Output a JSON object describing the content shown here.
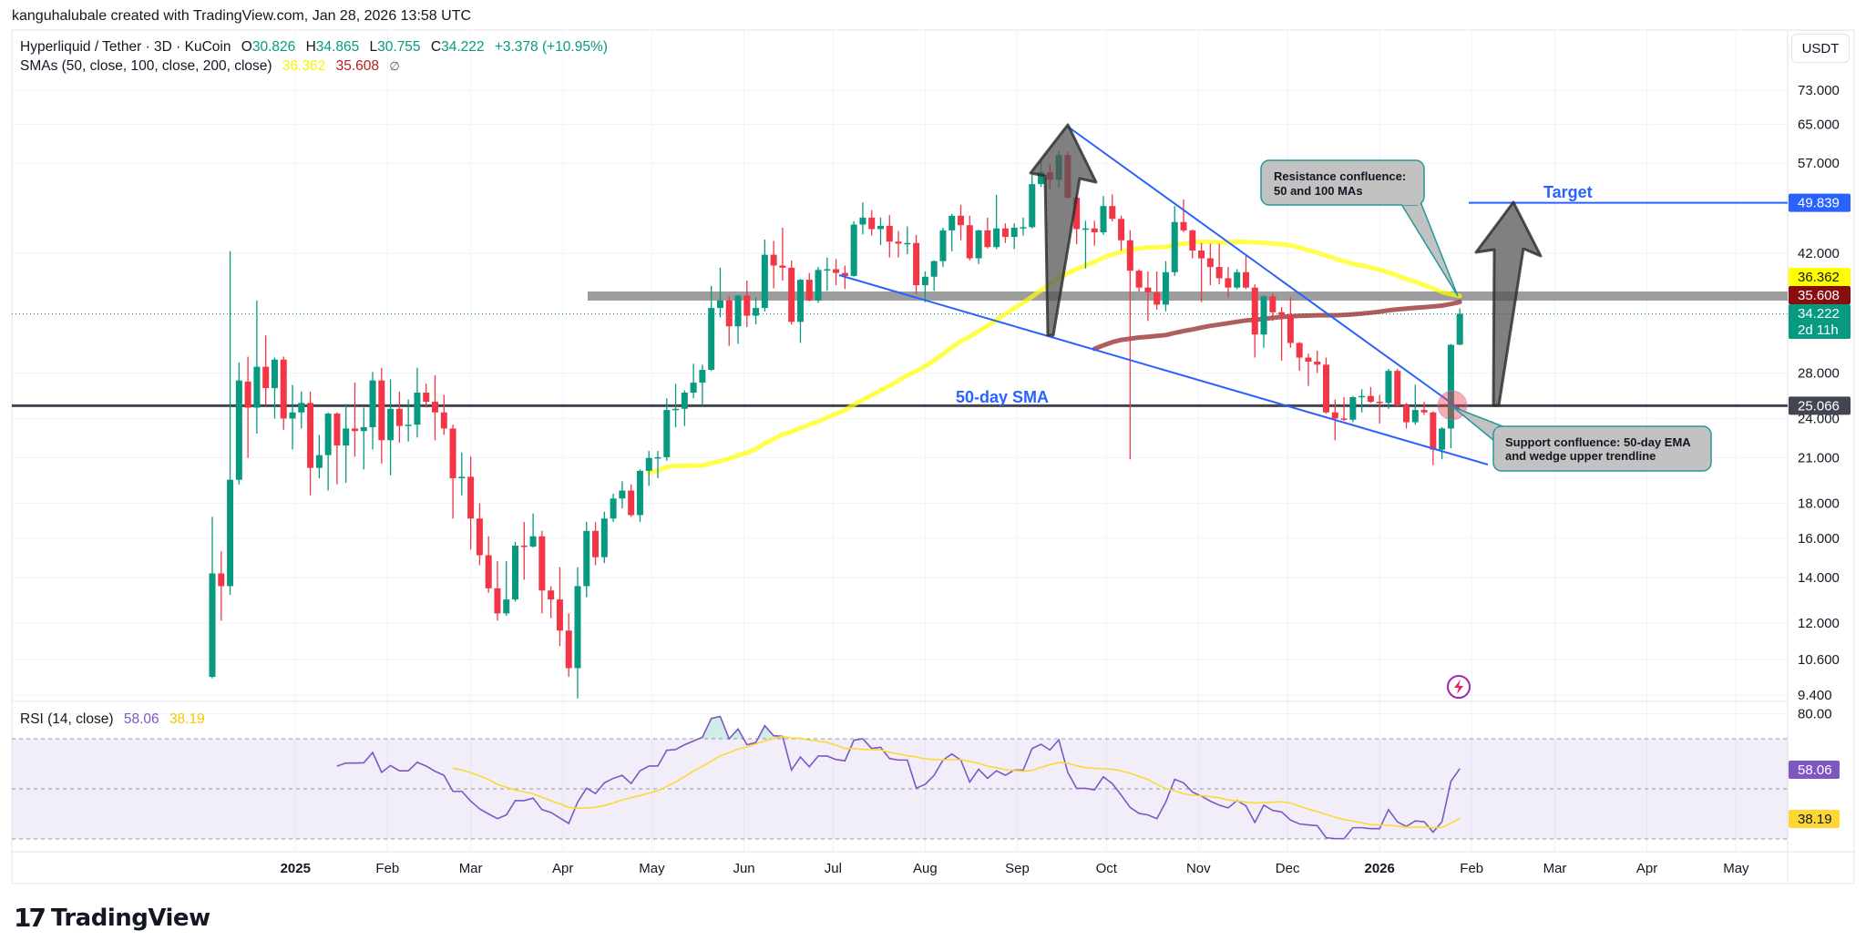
{
  "header": {
    "attribution": "kanguhalubale created with TradingView.com, Jan 28, 2026 13:58 UTC"
  },
  "legend": {
    "symbol": "Hyperliquid / Tether · 3D · KuCoin",
    "o_label": "O",
    "o": "30.826",
    "h_label": "H",
    "h": "34.865",
    "l_label": "L",
    "l": "30.755",
    "c_label": "C",
    "c": "34.222",
    "change": "+3.378 (+10.95%)",
    "sma_label": "SMAs (50, close, 100, close, 200, close)",
    "sma50": "36.362",
    "sma100": "35.608",
    "sma200": "∅"
  },
  "rsi_legend": {
    "label": "RSI (14, close)",
    "value": "58.06",
    "ma": "38.19"
  },
  "price_scale_button": "USDT",
  "branding": {
    "logo_text": "TradingView"
  },
  "colors": {
    "up": "#089981",
    "down": "#f23645",
    "sma50": "#ffff00",
    "sma100": "#8b1a1a",
    "rsi": "#7e57c2",
    "rsi_ma": "#fdd835",
    "annotation_blue": "#2962ff",
    "support_line": "#434651",
    "resistance_band": "#8c8c8c",
    "callout_fill": "#c2c2c2",
    "callout_border": "#22999a"
  },
  "chart_data": {
    "type": "candlestick",
    "symbol": "Hyperliquid / Tether",
    "interval": "3D",
    "price_scale": "log",
    "currency": "USDT",
    "grid": true,
    "price_ticks": [
      "73.000",
      "65.000",
      "57.000",
      "42.000",
      "28.000",
      "24.000",
      "21.000",
      "18.000",
      "16.000",
      "14.000",
      "12.000",
      "10.600",
      "9.400"
    ],
    "price_labels": [
      {
        "name": "target",
        "text": "49.839",
        "color": "#2962ff",
        "text_color": "#ffffff"
      },
      {
        "name": "sma50",
        "text": "36.362",
        "color": "#ffff00",
        "text_color": "#131722"
      },
      {
        "name": "sma100",
        "text": "35.608",
        "color": "#880e0e",
        "text_color": "#ffffff"
      },
      {
        "name": "last",
        "text": "34.222",
        "sub": "2d 11h",
        "color": "#089981",
        "text_color": "#ffffff"
      },
      {
        "name": "support",
        "text": "25.066",
        "color": "#434651",
        "text_color": "#ffffff"
      }
    ],
    "time_axis": {
      "labels": [
        {
          "text": "2025",
          "date": "2025-01-01",
          "bold": true
        },
        {
          "text": "Feb",
          "date": "2025-02-01"
        },
        {
          "text": "Mar",
          "date": "2025-03-01"
        },
        {
          "text": "Apr",
          "date": "2025-04-01"
        },
        {
          "text": "May",
          "date": "2025-05-01"
        },
        {
          "text": "Jun",
          "date": "2025-06-01"
        },
        {
          "text": "Jul",
          "date": "2025-07-01"
        },
        {
          "text": "Aug",
          "date": "2025-08-01"
        },
        {
          "text": "Sep",
          "date": "2025-09-01"
        },
        {
          "text": "Oct",
          "date": "2025-10-01"
        },
        {
          "text": "Nov",
          "date": "2025-11-01"
        },
        {
          "text": "Dec",
          "date": "2025-12-01"
        },
        {
          "text": "2026",
          "date": "2026-01-01",
          "bold": true
        },
        {
          "text": "Feb",
          "date": "2026-02-01"
        },
        {
          "text": "Mar",
          "date": "2026-03-01"
        },
        {
          "text": "Apr",
          "date": "2026-04-01"
        },
        {
          "text": "May",
          "date": "2026-05-01"
        }
      ]
    },
    "candle_columns": [
      "date",
      "open",
      "high",
      "low",
      "close"
    ],
    "candles": [
      [
        "2024-12-04",
        10.0,
        17.2,
        9.95,
        14.2
      ],
      [
        "2024-12-07",
        14.2,
        15.3,
        12.1,
        13.6
      ],
      [
        "2024-12-10",
        13.6,
        42.3,
        13.2,
        19.5
      ],
      [
        "2024-12-13",
        19.5,
        29.0,
        19.2,
        27.3
      ],
      [
        "2024-12-16",
        27.2,
        29.6,
        21.0,
        24.9
      ],
      [
        "2024-12-19",
        24.9,
        35.8,
        22.8,
        28.6
      ],
      [
        "2024-12-22",
        28.6,
        31.8,
        25.1,
        26.6
      ],
      [
        "2024-12-25",
        26.6,
        29.5,
        24.0,
        29.3
      ],
      [
        "2024-12-28",
        29.3,
        29.6,
        23.1,
        24.0
      ],
      [
        "2024-12-31",
        24.0,
        26.9,
        21.6,
        24.5
      ],
      [
        "2025-01-03",
        24.5,
        26.3,
        23.2,
        25.3
      ],
      [
        "2025-01-06",
        25.3,
        26.3,
        18.5,
        20.3
      ],
      [
        "2025-01-09",
        20.3,
        22.7,
        19.6,
        21.2
      ],
      [
        "2025-01-12",
        21.2,
        24.5,
        18.8,
        24.4
      ],
      [
        "2025-01-15",
        24.4,
        24.5,
        19.2,
        21.9
      ],
      [
        "2025-01-18",
        21.9,
        25.2,
        19.3,
        23.2
      ],
      [
        "2025-01-21",
        23.2,
        27.1,
        21.1,
        23.0
      ],
      [
        "2025-01-24",
        23.0,
        24.9,
        20.2,
        23.3
      ],
      [
        "2025-01-27",
        23.3,
        28.1,
        21.6,
        27.3
      ],
      [
        "2025-01-30",
        27.3,
        28.5,
        20.6,
        22.3
      ],
      [
        "2025-02-02",
        22.3,
        27.4,
        19.8,
        24.8
      ],
      [
        "2025-02-05",
        24.8,
        26.3,
        22.1,
        23.4
      ],
      [
        "2025-02-08",
        23.4,
        25.6,
        22.2,
        23.5
      ],
      [
        "2025-02-11",
        23.5,
        28.5,
        22.5,
        26.2
      ],
      [
        "2025-02-14",
        26.2,
        27.0,
        24.9,
        25.4
      ],
      [
        "2025-02-17",
        25.4,
        27.8,
        22.3,
        24.5
      ],
      [
        "2025-02-20",
        24.5,
        26.0,
        22.7,
        23.2
      ],
      [
        "2025-02-23",
        23.2,
        23.5,
        17.1,
        19.6
      ],
      [
        "2025-02-26",
        19.6,
        21.4,
        18.5,
        19.7
      ],
      [
        "2025-03-01",
        19.7,
        21.1,
        15.4,
        17.1
      ],
      [
        "2025-03-04",
        17.1,
        18.0,
        14.6,
        15.1
      ],
      [
        "2025-03-07",
        15.1,
        16.1,
        13.3,
        13.5
      ],
      [
        "2025-03-10",
        13.5,
        14.8,
        12.1,
        12.4
      ],
      [
        "2025-03-13",
        12.4,
        14.8,
        12.3,
        13.0
      ],
      [
        "2025-03-16",
        13.0,
        15.8,
        12.9,
        15.6
      ],
      [
        "2025-03-19",
        15.6,
        16.9,
        13.9,
        15.55
      ],
      [
        "2025-03-22",
        15.55,
        17.4,
        15.5,
        16.1
      ],
      [
        "2025-03-25",
        16.1,
        16.4,
        12.4,
        13.4
      ],
      [
        "2025-03-28",
        13.4,
        13.6,
        12.2,
        13.0
      ],
      [
        "2025-03-31",
        13.0,
        14.5,
        11.1,
        11.7
      ],
      [
        "2025-04-03",
        11.7,
        12.4,
        10.0,
        10.3
      ],
      [
        "2025-04-06",
        10.3,
        14.5,
        9.3,
        13.6
      ],
      [
        "2025-04-09",
        13.6,
        16.9,
        13.1,
        16.4
      ],
      [
        "2025-04-12",
        16.4,
        16.9,
        14.6,
        15.0
      ],
      [
        "2025-04-15",
        15.0,
        17.5,
        14.7,
        17.1
      ],
      [
        "2025-04-18",
        17.1,
        18.6,
        16.9,
        18.3
      ],
      [
        "2025-04-21",
        18.3,
        19.4,
        17.7,
        18.8
      ],
      [
        "2025-04-24",
        18.8,
        19.2,
        17.2,
        17.3
      ],
      [
        "2025-04-27",
        17.3,
        20.2,
        16.9,
        20.1
      ],
      [
        "2025-04-30",
        20.1,
        21.5,
        19.1,
        21.0
      ],
      [
        "2025-05-03",
        21.0,
        21.5,
        19.6,
        21.05
      ],
      [
        "2025-05-06",
        21.05,
        25.7,
        20.8,
        24.7
      ],
      [
        "2025-05-09",
        24.7,
        27.0,
        23.3,
        24.8
      ],
      [
        "2025-05-12",
        24.8,
        26.4,
        23.4,
        26.2
      ],
      [
        "2025-05-15",
        26.2,
        28.9,
        25.7,
        27.1
      ],
      [
        "2025-05-18",
        27.1,
        28.8,
        25.1,
        28.3
      ],
      [
        "2025-05-21",
        28.3,
        37.6,
        28.2,
        34.9
      ],
      [
        "2025-05-24",
        34.9,
        40.0,
        33.8,
        35.8
      ],
      [
        "2025-05-27",
        35.8,
        36.3,
        30.7,
        32.8
      ],
      [
        "2025-05-30",
        32.8,
        36.5,
        30.9,
        36.4
      ],
      [
        "2025-06-02",
        36.4,
        38.3,
        32.7,
        34.0
      ],
      [
        "2025-06-05",
        34.0,
        36.2,
        33.0,
        34.9
      ],
      [
        "2025-06-08",
        34.9,
        44.0,
        34.5,
        41.8
      ],
      [
        "2025-06-11",
        41.8,
        43.8,
        37.3,
        40.3
      ],
      [
        "2025-06-14",
        40.3,
        45.8,
        38.3,
        40.0
      ],
      [
        "2025-06-17",
        40.0,
        41.0,
        33.0,
        33.3
      ],
      [
        "2025-06-20",
        33.3,
        38.5,
        31.0,
        38.4
      ],
      [
        "2025-06-23",
        38.4,
        39.3,
        35.7,
        35.8
      ],
      [
        "2025-06-26",
        35.8,
        40.1,
        35.5,
        39.7
      ],
      [
        "2025-06-29",
        39.7,
        41.4,
        37.0,
        39.8
      ],
      [
        "2025-07-02",
        39.8,
        41.2,
        37.7,
        39.3
      ],
      [
        "2025-07-05",
        39.3,
        40.3,
        37.2,
        38.9
      ],
      [
        "2025-07-08",
        38.9,
        46.8,
        38.8,
        46.3
      ],
      [
        "2025-07-11",
        46.3,
        49.9,
        44.8,
        47.4
      ],
      [
        "2025-07-14",
        47.4,
        48.6,
        44.6,
        45.6
      ],
      [
        "2025-07-17",
        45.6,
        47.4,
        43.2,
        46.1
      ],
      [
        "2025-07-20",
        46.1,
        47.8,
        41.4,
        43.7
      ],
      [
        "2025-07-23",
        43.7,
        45.3,
        41.4,
        43.4
      ],
      [
        "2025-07-26",
        43.4,
        46.0,
        41.9,
        43.5
      ],
      [
        "2025-07-29",
        43.5,
        44.7,
        36.6,
        37.7
      ],
      [
        "2025-08-01",
        37.7,
        39.5,
        35.6,
        38.8
      ],
      [
        "2025-08-04",
        38.8,
        41.0,
        37.0,
        40.9
      ],
      [
        "2025-08-07",
        40.9,
        45.8,
        40.1,
        45.4
      ],
      [
        "2025-08-10",
        45.4,
        48.0,
        42.3,
        47.7
      ],
      [
        "2025-08-13",
        47.7,
        49.5,
        43.9,
        46.2
      ],
      [
        "2025-08-16",
        46.2,
        47.7,
        41.0,
        41.3
      ],
      [
        "2025-08-19",
        41.3,
        45.5,
        40.5,
        45.4
      ],
      [
        "2025-08-22",
        45.4,
        47.4,
        42.7,
        42.9
      ],
      [
        "2025-08-25",
        42.9,
        51.2,
        42.6,
        45.7
      ],
      [
        "2025-08-28",
        45.7,
        46.5,
        43.5,
        44.4
      ],
      [
        "2025-08-31",
        44.4,
        46.5,
        42.6,
        45.8
      ],
      [
        "2025-09-03",
        45.8,
        47.4,
        44.6,
        45.9
      ],
      [
        "2025-09-06",
        45.9,
        54.8,
        45.7,
        53.1
      ],
      [
        "2025-09-09",
        53.1,
        57.4,
        52.6,
        55.3
      ],
      [
        "2025-09-12",
        55.3,
        56.9,
        52.2,
        53.9
      ],
      [
        "2025-09-15",
        53.9,
        59.4,
        52.4,
        58.6
      ],
      [
        "2025-09-18",
        58.6,
        59.2,
        50.5,
        50.7
      ],
      [
        "2025-09-21",
        50.7,
        51.0,
        43.3,
        45.6
      ],
      [
        "2025-09-24",
        45.6,
        46.9,
        39.9,
        45.7
      ],
      [
        "2025-09-27",
        45.7,
        46.9,
        43.1,
        45.1
      ],
      [
        "2025-09-30",
        45.1,
        51.0,
        44.7,
        49.3
      ],
      [
        "2025-10-03",
        49.3,
        51.3,
        46.8,
        47.2
      ],
      [
        "2025-10-06",
        47.2,
        47.7,
        42.4,
        43.9
      ],
      [
        "2025-10-09",
        43.9,
        45.4,
        20.9,
        39.6
      ],
      [
        "2025-10-12",
        39.6,
        39.8,
        36.9,
        37.4
      ],
      [
        "2025-10-15",
        37.4,
        39.5,
        33.4,
        36.8
      ],
      [
        "2025-10-18",
        36.8,
        39.5,
        34.7,
        35.3
      ],
      [
        "2025-10-21",
        35.3,
        40.9,
        34.5,
        39.4
      ],
      [
        "2025-10-24",
        39.4,
        49.3,
        38.9,
        46.7
      ],
      [
        "2025-10-27",
        46.7,
        50.4,
        45.1,
        45.4
      ],
      [
        "2025-10-30",
        45.4,
        45.5,
        41.3,
        42.4
      ],
      [
        "2025-11-02",
        42.4,
        43.5,
        35.6,
        41.3
      ],
      [
        "2025-11-05",
        41.3,
        43.4,
        37.7,
        40.1
      ],
      [
        "2025-11-08",
        40.1,
        43.4,
        37.8,
        38.6
      ],
      [
        "2025-11-11",
        38.6,
        40.1,
        36.1,
        37.4
      ],
      [
        "2025-11-14",
        37.4,
        39.8,
        37.2,
        39.4
      ],
      [
        "2025-11-17",
        39.4,
        41.8,
        37.2,
        37.4
      ],
      [
        "2025-11-20",
        37.4,
        37.8,
        29.5,
        31.9
      ],
      [
        "2025-11-23",
        31.9,
        36.4,
        30.5,
        36.3
      ],
      [
        "2025-11-26",
        36.3,
        36.7,
        33.4,
        34.4
      ],
      [
        "2025-11-29",
        34.4,
        35.0,
        29.2,
        34.1
      ],
      [
        "2025-12-02",
        34.1,
        36.2,
        30.5,
        31.0
      ],
      [
        "2025-12-05",
        31.0,
        31.1,
        28.2,
        29.5
      ],
      [
        "2025-12-08",
        29.5,
        29.9,
        26.8,
        29.1
      ],
      [
        "2025-12-11",
        29.1,
        30.2,
        28.0,
        28.8
      ],
      [
        "2025-12-14",
        28.8,
        29.5,
        24.4,
        24.5
      ],
      [
        "2025-12-17",
        24.5,
        25.6,
        22.3,
        24.0
      ],
      [
        "2025-12-20",
        24.0,
        25.8,
        23.8,
        23.9
      ],
      [
        "2025-12-23",
        23.9,
        25.9,
        23.7,
        25.8
      ],
      [
        "2025-12-26",
        25.8,
        26.5,
        24.5,
        25.9
      ],
      [
        "2025-12-29",
        25.9,
        26.7,
        25.3,
        25.4
      ],
      [
        "2026-01-01",
        25.4,
        26.0,
        23.6,
        25.3
      ],
      [
        "2026-01-04",
        25.3,
        28.4,
        24.8,
        28.2
      ],
      [
        "2026-01-07",
        28.2,
        28.4,
        25.0,
        25.1
      ],
      [
        "2026-01-10",
        25.1,
        25.3,
        23.2,
        23.7
      ],
      [
        "2026-01-13",
        23.7,
        26.9,
        23.5,
        24.7
      ],
      [
        "2026-01-16",
        24.7,
        25.4,
        24.3,
        24.5
      ],
      [
        "2026-01-19",
        24.5,
        24.6,
        20.5,
        21.6
      ],
      [
        "2026-01-22",
        21.6,
        23.3,
        20.9,
        23.2
      ],
      [
        "2026-01-25",
        23.2,
        30.9,
        21.7,
        30.8
      ],
      [
        "2026-01-28",
        30.826,
        34.865,
        30.755,
        34.222
      ]
    ],
    "sma_periods": [
      50,
      100
    ],
    "rsi": {
      "period": 14,
      "ma_period": 14,
      "ticks": [
        "80.00"
      ],
      "levels": [
        70,
        50,
        30
      ],
      "values": [
        null,
        null,
        null,
        null,
        null,
        null,
        null,
        null,
        null,
        null,
        null,
        null,
        null,
        null,
        59.1,
        60.3,
        60.3,
        60.4,
        64.5,
        56.6,
        59.3,
        57.2,
        57.2,
        60.6,
        59.1,
        57.0,
        55.4,
        49.0,
        49.0,
        45.1,
        42.0,
        40.0,
        38.1,
        39.6,
        45.3,
        45.3,
        46.3,
        41.7,
        40.6,
        38.4,
        36.2,
        44.7,
        50.3,
        48.1,
        52.4,
        54.2,
        55.4,
        52.1,
        57.2,
        59.1,
        59.1,
        65.4,
        65.7,
        67.6,
        69.1,
        70.6,
        78.1,
        78.9,
        70.0,
        73.9,
        67.6,
        68.5,
        75.2,
        71.2,
        71.0,
        57.5,
        62.7,
        58.8,
        63.1,
        63.1,
        61.7,
        61.2,
        69.4,
        70.0,
        66.1,
        66.6,
        62.1,
        61.5,
        61.5,
        50.3,
        51.8,
        55.4,
        61.5,
        63.9,
        61.5,
        52.7,
        57.8,
        54.2,
        57.2,
        55.4,
        57.5,
        57.5,
        66.1,
        67.8,
        65.5,
        69.6,
        56.6,
        50.2,
        50.2,
        49.6,
        54.8,
        52.1,
        47.5,
        42.6,
        40.2,
        39.6,
        38.1,
        44.7,
        53.8,
        52.4,
        48.7,
        47.1,
        45.1,
        43.5,
        42.4,
        45.3,
        43.2,
        36.6,
        43.5,
        41.4,
        40.8,
        37.5,
        36.0,
        35.6,
        35.3,
        30.5,
        30.1,
        30.1,
        34.5,
        34.5,
        34.1,
        34.1,
        41.7,
        36.8,
        35.0,
        37.2,
        36.9,
        32.7,
        36.9,
        53.0,
        58.06
      ],
      "labels": [
        {
          "name": "rsi",
          "text": "58.06",
          "color": "#7e57c2",
          "text_color": "#ffffff"
        },
        {
          "name": "rsi-ma",
          "text": "38.19",
          "color": "#fdd835",
          "text_color": "#131722"
        }
      ]
    }
  },
  "annotations": {
    "sma_text": "50-day SMA",
    "target_text": "Target",
    "target_price": 49.839,
    "support_price": 25.066,
    "resistance_callout": [
      "Resistance confluence:",
      "50 and 100 MAs"
    ],
    "support_callout": [
      "Support confluence: 50-day EMA",
      "and wedge upper trendline"
    ]
  }
}
